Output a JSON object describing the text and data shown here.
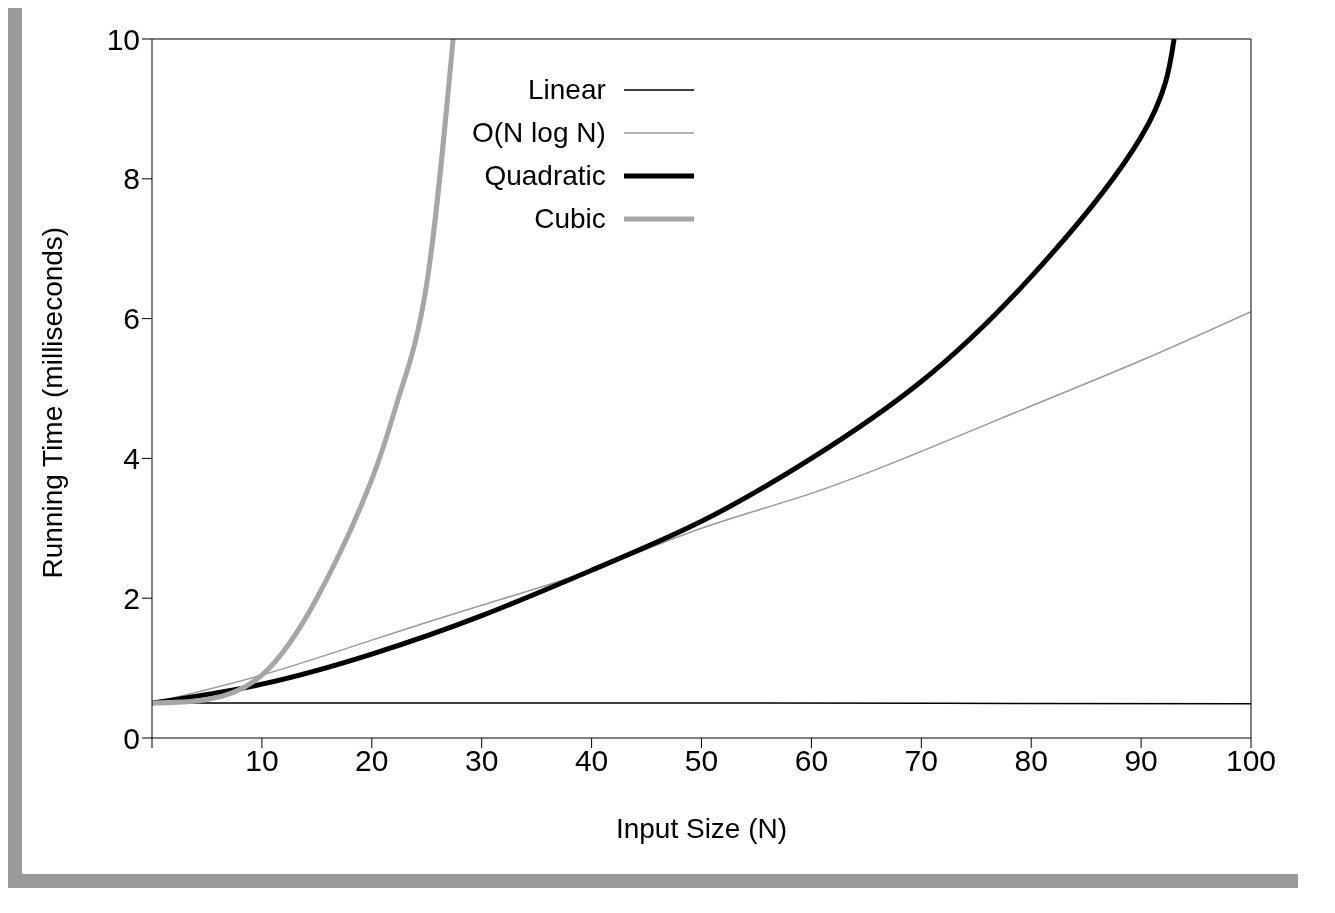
{
  "chart_data": {
    "type": "line",
    "xlabel": "Input Size (N)",
    "ylabel": "Running Time (milliseconds)",
    "xlim": [
      0,
      100
    ],
    "ylim": [
      0,
      10
    ],
    "xticks": [
      {
        "value": 0,
        "label": null
      },
      10,
      20,
      30,
      40,
      50,
      60,
      70,
      80,
      90,
      100
    ],
    "yticks": [
      0,
      2,
      4,
      6,
      8,
      10
    ],
    "grid": false,
    "legend": "top",
    "marker": "none",
    "line_style": "solid",
    "series": [
      {
        "name": "Linear",
        "color": "#000000",
        "x": [
          0,
          50,
          100
        ],
        "values": [
          0.5,
          0.5,
          0.49
        ]
      },
      {
        "name": "O(N log N)",
        "color": "#999999",
        "x": [
          0,
          10,
          20,
          30,
          40,
          50,
          60,
          70,
          80,
          90,
          100
        ],
        "values": [
          0.5,
          0.9,
          1.4,
          1.9,
          2.4,
          3.0,
          3.5,
          4.1,
          4.75,
          5.4,
          6.1
        ]
      },
      {
        "name": "Quadratic",
        "color": "#000000",
        "x": [
          0,
          10,
          20,
          30,
          40,
          50,
          60,
          70,
          80,
          90,
          93
        ],
        "values": [
          0.5,
          0.77,
          1.2,
          1.75,
          2.4,
          3.1,
          4.0,
          5.1,
          6.6,
          8.6,
          10
        ]
      },
      {
        "name": "Cubic",
        "color": "#a6a6a6",
        "x": [
          0,
          5,
          10,
          15,
          20,
          22.5,
          25,
          27.4
        ],
        "values": [
          0.5,
          0.55,
          0.9,
          2.0,
          3.7,
          4.9,
          6.5,
          10
        ]
      }
    ]
  }
}
